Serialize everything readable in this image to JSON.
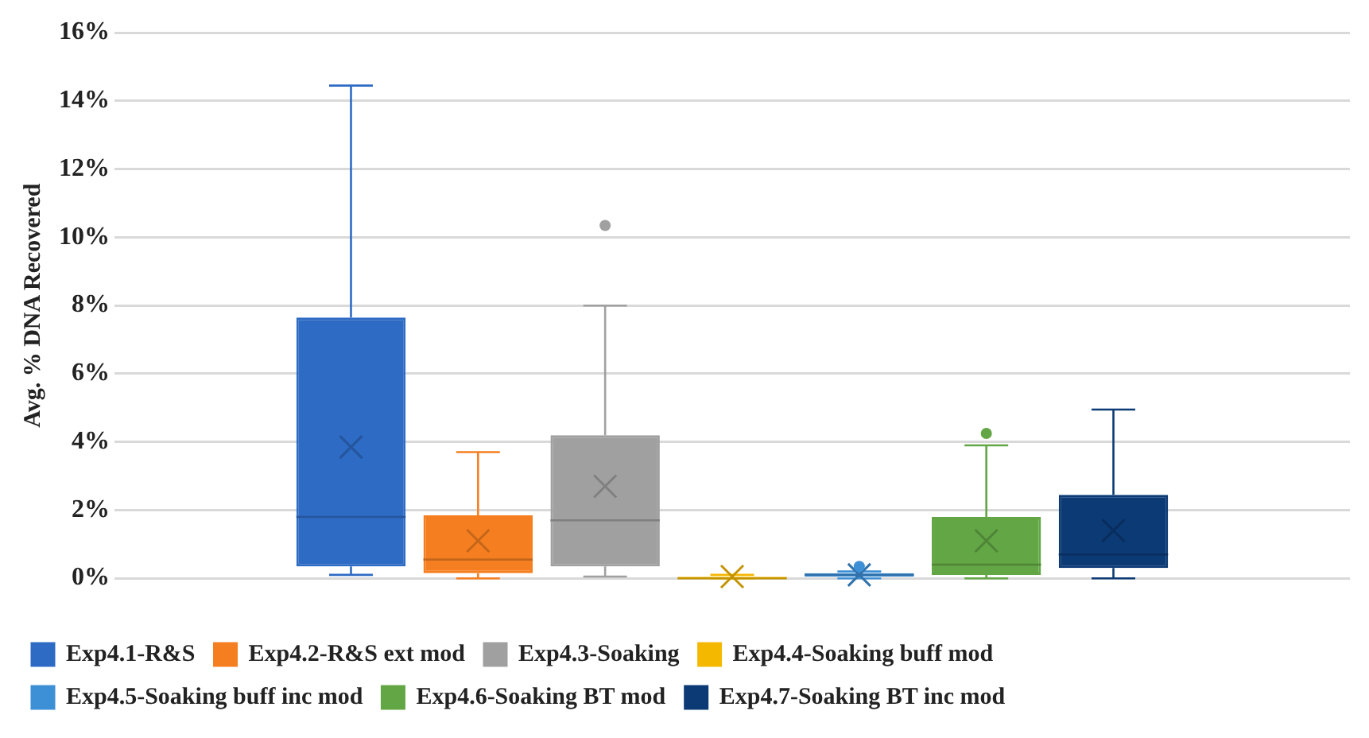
{
  "chart_data": {
    "type": "box",
    "ylabel": "Avg. % DNA Recovered",
    "categories": [
      null
    ],
    "ylim": [
      0,
      16
    ],
    "yticks": [
      {
        "value": 0,
        "label": "0%"
      },
      {
        "value": 2,
        "label": "2%"
      },
      {
        "value": 4,
        "label": "4%"
      },
      {
        "value": 6,
        "label": "6%"
      },
      {
        "value": 8,
        "label": "8%"
      },
      {
        "value": 10,
        "label": "10%"
      },
      {
        "value": 12,
        "label": "12%"
      },
      {
        "value": 14,
        "label": "14%"
      },
      {
        "value": 16,
        "label": "16%"
      }
    ],
    "grid": "y",
    "legend": "bottom",
    "marker": "cross",
    "series": [
      {
        "name": "Exp4.1-R&S",
        "color": "#2e6bc4",
        "boxes": [
          {
            "low": 0.1,
            "q1": 0.35,
            "median": 1.8,
            "q3": 7.65,
            "high": 14.45,
            "mean": 3.85
          }
        ]
      },
      {
        "name": "Exp4.2-R&S ext mod",
        "color": "#f57f20",
        "boxes": [
          {
            "low": 0,
            "q1": 0.15,
            "median": 0.55,
            "q3": 1.85,
            "high": 3.7,
            "mean": 1.1
          }
        ]
      },
      {
        "name": "Exp4.3-Soaking",
        "color": "#a0a0a0",
        "boxes": [
          {
            "low": 0.05,
            "q1": 0.35,
            "median": 1.7,
            "q3": 4.2,
            "high": 8.0,
            "mean": 2.7,
            "outliers": [
              10.35
            ]
          }
        ]
      },
      {
        "name": "Exp4.4-Soaking buff mod",
        "color": "#f5b800",
        "boxes": [
          {
            "low": 0,
            "q1": 0,
            "median": 0,
            "q3": 0.05,
            "high": 0.1,
            "mean": 0.05
          }
        ]
      },
      {
        "name": "Exp4.5-Soaking buff inc mod",
        "color": "#3d8fd6",
        "boxes": [
          {
            "low": 0,
            "q1": 0.05,
            "median": 0.1,
            "q3": 0.15,
            "high": 0.2,
            "mean": 0.1,
            "outliers": [
              0.35
            ]
          }
        ]
      },
      {
        "name": "Exp4.6-Soaking BT mod",
        "color": "#63a645",
        "boxes": [
          {
            "low": 0,
            "q1": 0.1,
            "median": 0.4,
            "q3": 1.8,
            "high": 3.9,
            "mean": 1.1,
            "outliers": [
              4.25
            ]
          }
        ]
      },
      {
        "name": "Exp4.7-Soaking BT inc mod",
        "color": "#0b3a75",
        "boxes": [
          {
            "low": 0,
            "q1": 0.3,
            "median": 0.7,
            "q3": 2.45,
            "high": 4.95,
            "mean": 1.4
          }
        ]
      }
    ]
  }
}
